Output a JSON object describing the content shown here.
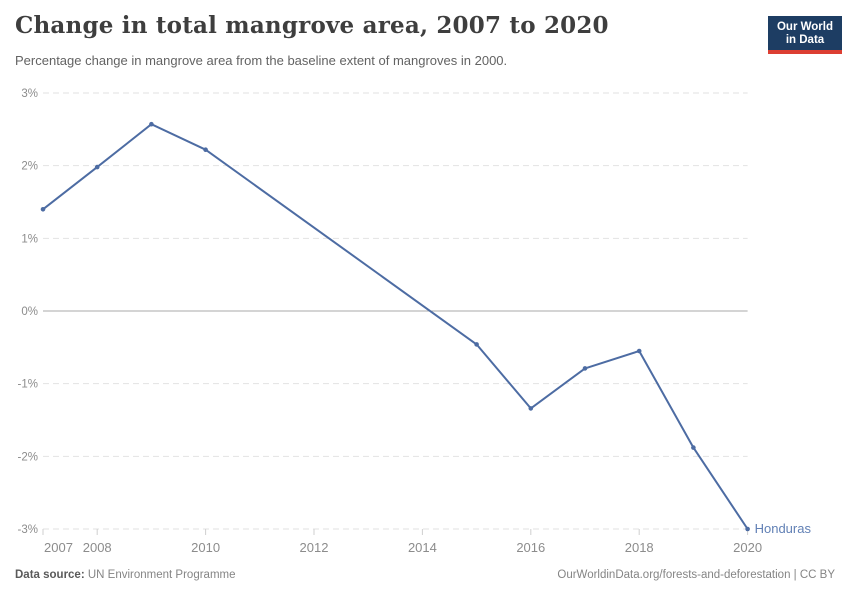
{
  "chart_data": {
    "type": "line",
    "title": "Change in total mangrove area, 2007 to 2020",
    "subtitle": "Percentage change in mangrove area from the baseline extent of mangroves in 2000.",
    "series": [
      {
        "name": "Honduras",
        "points": [
          [
            2007,
            1.4
          ],
          [
            2008,
            1.98
          ],
          [
            2009,
            2.57
          ],
          [
            2010,
            2.22
          ],
          [
            2015,
            -0.46
          ],
          [
            2016,
            -1.34
          ],
          [
            2017,
            -0.79
          ],
          [
            2018,
            -0.55
          ],
          [
            2019,
            -1.88
          ],
          [
            2020,
            -3.0
          ]
        ]
      }
    ],
    "xlabel": "",
    "ylabel": "",
    "xlim": [
      2007,
      2020
    ],
    "ylim": [
      -3,
      3
    ],
    "x_ticks": [
      2007,
      2008,
      2010,
      2012,
      2014,
      2016,
      2018,
      2020
    ],
    "y_ticks": [
      3,
      2,
      1,
      0,
      -1,
      -2,
      -3
    ],
    "y_tick_suffix": "%",
    "grid": "horizontal dashed, solid zero line",
    "legend_position": "line-end-label",
    "line_color": "#4d6ca3",
    "series_label_color": "#6180b5",
    "gridline_color": "#e2e2e2",
    "zero_line_color": "#a8a8a8",
    "tick_label_color": "#8c8c8c"
  },
  "branding": {
    "logo_line1": "Our World",
    "logo_line2": "in Data",
    "logo_bg": "#1d3d63",
    "logo_accent": "#dc3e32"
  },
  "footer": {
    "source_label": "Data source:",
    "source_value": "UN Environment Programme",
    "credit": "OurWorldinData.org/forests-and-deforestation | CC BY"
  }
}
